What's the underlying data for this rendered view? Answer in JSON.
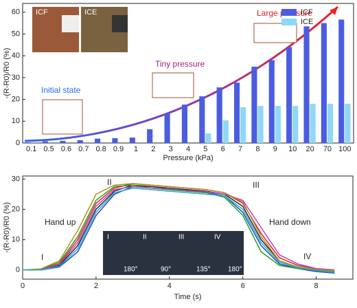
{
  "chart_data": [
    {
      "type": "bar",
      "ylabel": "-(R-R0)/R0 (%)",
      "xlabel": "Pressure (kPa)",
      "categories": [
        "0.1",
        "0.5",
        "0.6",
        "0.7",
        "0.8",
        "0.9",
        "1",
        "2",
        "3",
        "4",
        "5",
        "6",
        "7",
        "8",
        "9",
        "10",
        "20",
        "70",
        "100"
      ],
      "series": [
        {
          "name": "ICF",
          "color": "#4a5de0",
          "values": [
            0.3,
            0.8,
            1,
            1.3,
            2,
            2.2,
            2.5,
            6.3,
            13.5,
            17.6,
            21.4,
            25.5,
            27.7,
            35,
            38,
            44,
            53.5,
            55,
            56.6
          ]
        },
        {
          "name": "ICE",
          "color": "#8fd8f5",
          "values": [
            0,
            0,
            0,
            0,
            0,
            0,
            0,
            0,
            0,
            0,
            4.4,
            10.4,
            16.4,
            17,
            17,
            17,
            18,
            18,
            18
          ]
        }
      ],
      "ylim": [
        0,
        64
      ],
      "yticks": [
        0,
        10,
        20,
        30,
        40,
        50,
        60
      ],
      "annotations": [
        "Initial state",
        "Tiny pressure",
        "Large pressure",
        "ICF",
        "ICE"
      ]
    },
    {
      "type": "line",
      "ylabel": "-(R-R0)/R0 (%)",
      "xlabel": "Time (s)",
      "x": [
        0,
        0.5,
        1,
        1.5,
        2,
        2.5,
        3,
        3.5,
        4,
        4.5,
        5,
        5.5,
        6,
        6.5,
        7,
        7.5,
        8,
        8.5
      ],
      "series": [
        {
          "color": "#222222",
          "values": [
            0,
            0,
            1.5,
            8,
            20,
            26,
            28,
            27.5,
            27,
            26.5,
            26,
            25,
            21,
            10,
            3,
            1,
            0,
            -0.5
          ]
        },
        {
          "color": "#e02020",
          "values": [
            0,
            0.2,
            2,
            10,
            22,
            27,
            28.5,
            28,
            27.5,
            27,
            26.5,
            25.5,
            22,
            12,
            4,
            1.5,
            0.5,
            0
          ]
        },
        {
          "color": "#2040e0",
          "values": [
            0,
            0,
            1,
            6,
            18,
            25,
            27.5,
            27,
            26.5,
            26,
            25.5,
            24.5,
            19,
            8,
            2,
            0.5,
            -0.5,
            -1
          ]
        },
        {
          "color": "#20a020",
          "values": [
            0,
            0.3,
            2.5,
            11,
            23,
            27.5,
            28,
            27,
            26.5,
            26,
            25.5,
            24,
            18,
            6,
            1.5,
            0.5,
            0,
            -0.5
          ]
        },
        {
          "color": "#c040c0",
          "values": [
            0,
            0.1,
            1.8,
            9,
            21,
            26.5,
            27.5,
            27,
            26.8,
            26.2,
            25.8,
            25,
            23,
            14,
            5,
            2,
            0.5,
            0
          ]
        },
        {
          "color": "#b09020",
          "values": [
            0,
            0.4,
            3,
            13,
            25,
            28,
            28.5,
            28,
            27.5,
            27,
            26.5,
            25.5,
            22.5,
            11,
            3,
            1,
            0.2,
            -0.3
          ]
        },
        {
          "color": "#20b0c0",
          "values": [
            0,
            0,
            1.2,
            7,
            19,
            25.5,
            27,
            26.5,
            26,
            25.5,
            25,
            24.5,
            20,
            9,
            2.5,
            0.8,
            -0.2,
            -0.8
          ]
        }
      ],
      "xlim": [
        0,
        9
      ],
      "ylim": [
        -3,
        31
      ],
      "xticks": [
        0,
        2,
        4,
        6,
        8
      ],
      "yticks": [
        0,
        10,
        20,
        30
      ],
      "annotations": [
        "I",
        "II",
        "III",
        "IV",
        "Hand up",
        "Hand down",
        "I",
        "II",
        "III",
        "IV",
        "180°",
        "90°",
        "135°",
        "180°"
      ]
    }
  ]
}
